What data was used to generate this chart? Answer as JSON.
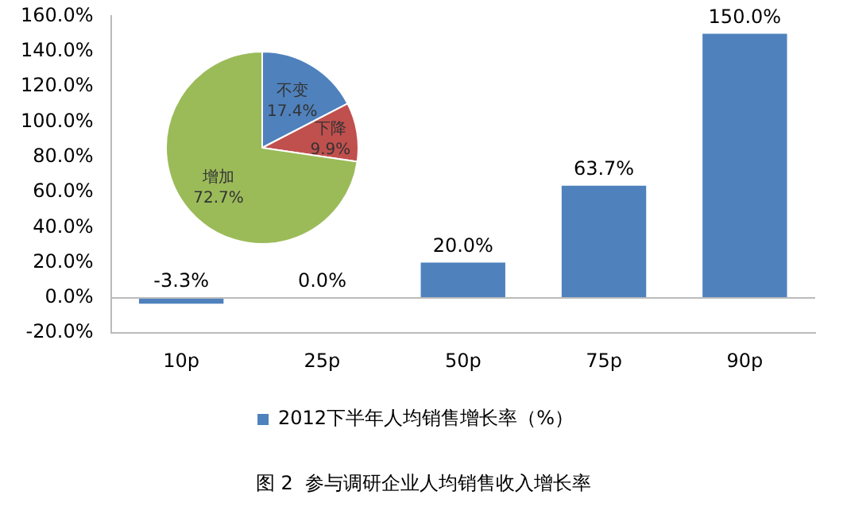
{
  "chart_data": [
    {
      "type": "bar",
      "categories": [
        "10p",
        "25p",
        "50p",
        "75p",
        "90p"
      ],
      "series": [
        {
          "name": "2012下半年人均销售增长率（%）",
          "color": "#4f81bd",
          "values": [
            -3.3,
            0,
            20,
            63.7,
            150
          ],
          "value_labels": [
            "-3.3%",
            "0.0%",
            "20.0%",
            "63.7%",
            "150.0%"
          ]
        }
      ],
      "ylim": [
        -20,
        160
      ],
      "yticks": [
        {
          "value": -20,
          "label": "-20.0%"
        },
        {
          "value": 0,
          "label": "0.0%"
        },
        {
          "value": 20,
          "label": "20.0%"
        },
        {
          "value": 40,
          "label": "40.0%"
        },
        {
          "value": 60,
          "label": "60.0%"
        },
        {
          "value": 80,
          "label": "80.0%"
        },
        {
          "value": 100,
          "label": "100.0%"
        },
        {
          "value": 120,
          "label": "120.0%"
        },
        {
          "value": 140,
          "label": "140.0%"
        },
        {
          "value": 160,
          "label": "160.0%"
        }
      ],
      "grid": false,
      "legend": "bottom",
      "ref_lines": [
        {
          "axis": "y",
          "value": 0,
          "color": "#bbbbbb"
        }
      ],
      "annotations": [
        "图 2  参与调研企业人均销售收入增长率"
      ]
    },
    {
      "type": "pie",
      "categories": [
        "不变",
        "下降",
        "增加"
      ],
      "values": [
        17.4,
        9.9,
        72.7
      ],
      "colors": [
        "#4f81bd",
        "#c0504d",
        "#9bbb59"
      ],
      "value_labels": [
        "17.4%",
        "9.9%",
        "72.7%"
      ],
      "legend": false
    }
  ]
}
